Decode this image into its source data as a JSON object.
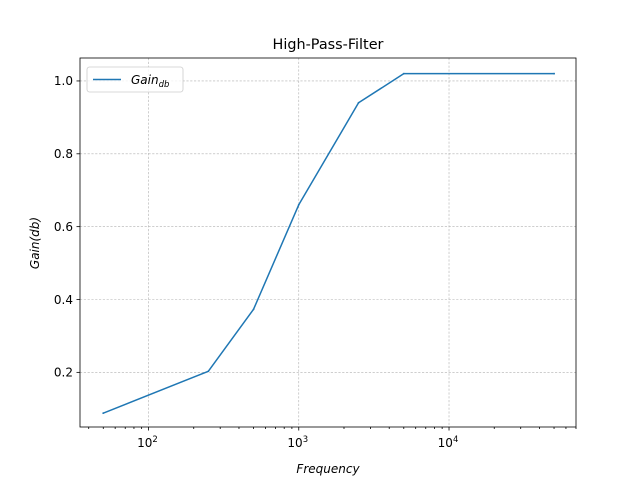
{
  "chart_data": {
    "type": "line",
    "title": "High-Pass-Filter",
    "xlabel": "Frequency",
    "ylabel": "Gain(db)",
    "xscale": "log",
    "xlim": [
      35,
      70000
    ],
    "ylim": [
      0.05,
      1.063
    ],
    "grid": true,
    "legend_placement": "top-left",
    "x_ticks": [
      {
        "value": 100,
        "base": "10",
        "exp": "2"
      },
      {
        "value": 1000,
        "base": "10",
        "exp": "3"
      },
      {
        "value": 10000,
        "base": "10",
        "exp": "4"
      }
    ],
    "y_ticks": [
      0.2,
      0.4,
      0.6,
      0.8,
      1.0
    ],
    "series": [
      {
        "name": "Gain",
        "name_subscript": "db",
        "color": "#1f77b4",
        "x": [
          50,
          250,
          500,
          1000,
          2500,
          5000,
          50000
        ],
        "y": [
          0.088,
          0.203,
          0.373,
          0.66,
          0.94,
          1.02,
          1.02
        ]
      }
    ]
  }
}
